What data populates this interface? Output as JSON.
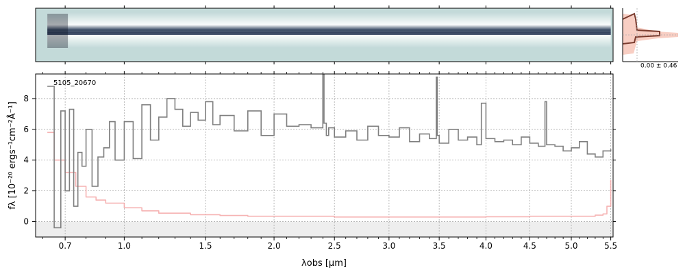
{
  "chart_data": {
    "type": "line",
    "object_id": "5105_20670",
    "xlabel": "λobs [μm]",
    "ylabel": "fλ [10⁻²⁰ ergs⁻¹cm⁻²Å⁻¹]",
    "x_scale": "sqrt",
    "xlim": [
      0.57,
      5.53
    ],
    "ylim": [
      -1,
      9.6
    ],
    "x_ticks": [
      0.7,
      1.0,
      1.5,
      2.0,
      2.5,
      3.0,
      3.5,
      4.0,
      4.5,
      5.0,
      5.5
    ],
    "y_ticks": [
      0,
      2,
      4,
      6,
      8
    ],
    "grid": true,
    "series": [
      {
        "id": "flux",
        "color": "#7f7f7f",
        "x": [
          0.62,
          0.65,
          0.68,
          0.7,
          0.72,
          0.74,
          0.76,
          0.78,
          0.8,
          0.83,
          0.86,
          0.89,
          0.92,
          0.95,
          1.0,
          1.05,
          1.1,
          1.15,
          1.2,
          1.25,
          1.3,
          1.35,
          1.4,
          1.45,
          1.5,
          1.55,
          1.6,
          1.7,
          1.8,
          1.9,
          2.0,
          2.1,
          2.2,
          2.3,
          2.4,
          2.41,
          2.43,
          2.45,
          2.5,
          2.6,
          2.7,
          2.8,
          2.9,
          3.0,
          3.1,
          3.2,
          3.3,
          3.4,
          3.47,
          3.48,
          3.5,
          3.6,
          3.7,
          3.8,
          3.9,
          3.95,
          4.0,
          4.1,
          4.2,
          4.3,
          4.4,
          4.5,
          4.6,
          4.68,
          4.7,
          4.8,
          4.9,
          5.0,
          5.1,
          5.2,
          5.3,
          5.4,
          5.5
        ],
        "y": [
          8.8,
          -0.4,
          7.2,
          2.0,
          7.3,
          1.0,
          4.5,
          3.6,
          6.0,
          2.3,
          4.2,
          4.8,
          6.5,
          4.0,
          6.5,
          4.1,
          7.6,
          5.3,
          6.8,
          8.0,
          7.3,
          6.2,
          7.1,
          6.6,
          7.8,
          6.3,
          6.9,
          5.9,
          7.2,
          5.6,
          7.0,
          6.2,
          6.3,
          6.1,
          9.6,
          6.4,
          5.6,
          6.1,
          5.5,
          5.9,
          5.3,
          6.2,
          5.6,
          5.5,
          6.1,
          5.2,
          5.7,
          5.4,
          9.4,
          5.6,
          5.1,
          6.0,
          5.3,
          5.5,
          5.0,
          7.7,
          5.4,
          5.2,
          5.3,
          5.0,
          5.5,
          5.1,
          4.9,
          7.8,
          5.0,
          4.9,
          4.6,
          4.8,
          5.2,
          4.4,
          4.2,
          4.6,
          4.7
        ]
      },
      {
        "id": "error",
        "color": "#f4a6a6",
        "x": [
          0.62,
          0.65,
          0.7,
          0.75,
          0.8,
          0.85,
          0.9,
          1.0,
          1.1,
          1.2,
          1.4,
          1.6,
          1.8,
          2.0,
          2.5,
          3.0,
          3.5,
          4.0,
          4.5,
          5.0,
          5.3,
          5.4,
          5.45,
          5.5
        ],
        "y": [
          5.8,
          4.0,
          3.2,
          2.3,
          1.6,
          1.4,
          1.2,
          0.9,
          0.7,
          0.55,
          0.45,
          0.4,
          0.35,
          0.35,
          0.3,
          0.3,
          0.3,
          0.32,
          0.35,
          0.35,
          0.42,
          0.5,
          1.0,
          2.7
        ]
      }
    ],
    "zero_band_ylim": [
      -1,
      0
    ]
  },
  "spectrum2d": {
    "background_color": "#c3dad9",
    "trace_color": "#1a2a4a"
  },
  "profile_panel": {
    "label": "0.00 ± 0.46",
    "line_color": "#7a3b2e",
    "fill_color": "#f6c2b4"
  }
}
